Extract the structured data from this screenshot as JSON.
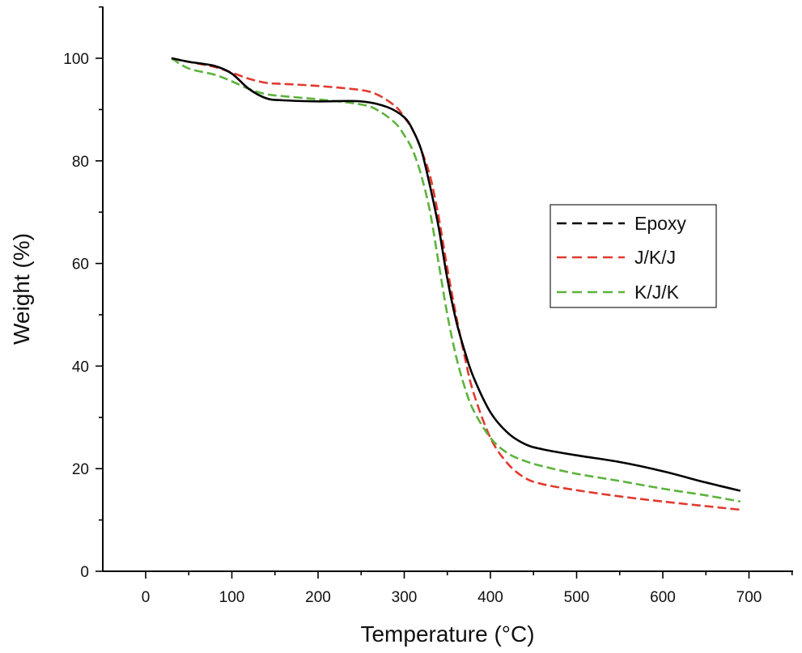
{
  "chart_data": {
    "type": "line",
    "title": "",
    "xlabel": "Temperature (°C)",
    "ylabel": "Weight (%)",
    "xlim": [
      -50,
      750
    ],
    "ylim": [
      0,
      110
    ],
    "xticks": [
      0,
      100,
      200,
      300,
      400,
      500,
      600,
      700
    ],
    "yticks": [
      0,
      20,
      40,
      60,
      80,
      100
    ],
    "xtick_labels": [
      "0",
      "100",
      "200",
      "300",
      "400",
      "500",
      "600",
      "700"
    ],
    "ytick_labels": [
      "0",
      "20",
      "40",
      "60",
      "80",
      "100"
    ],
    "grid": false,
    "legend_position": "right",
    "series": [
      {
        "name": "Epoxy",
        "color": "#000000",
        "style": "solid",
        "x": [
          30,
          50,
          80,
          100,
          120,
          140,
          160,
          200,
          250,
          280,
          300,
          310,
          320,
          330,
          340,
          350,
          360,
          370,
          380,
          400,
          420,
          440,
          460,
          500,
          550,
          600,
          650,
          690
        ],
        "y": [
          100,
          99.3,
          98.5,
          97,
          94,
          92.2,
          91.8,
          91.6,
          91.6,
          90.5,
          88.5,
          86,
          82,
          75,
          67,
          57,
          49,
          43,
          38,
          31,
          27,
          24.8,
          23.8,
          22.6,
          21.3,
          19.5,
          17.3,
          15.7
        ]
      },
      {
        "name": "J/K/J",
        "color": "#e03a2f",
        "style": "dashed",
        "x": [
          30,
          50,
          80,
          100,
          120,
          140,
          160,
          200,
          250,
          270,
          290,
          300,
          310,
          320,
          330,
          340,
          350,
          360,
          370,
          380,
          400,
          420,
          440,
          460,
          500,
          550,
          600,
          650,
          690
        ],
        "y": [
          100,
          99.3,
          98.3,
          97.2,
          96,
          95.2,
          95,
          94.6,
          93.8,
          92.8,
          90.6,
          88.5,
          86,
          82,
          77,
          69,
          59,
          50,
          42,
          35,
          26,
          21,
          18.2,
          17,
          15.8,
          14.6,
          13.6,
          12.7,
          12
        ]
      },
      {
        "name": "K/J/K",
        "color": "#5cb33c",
        "style": "dashed",
        "x": [
          30,
          50,
          80,
          100,
          120,
          140,
          160,
          200,
          250,
          270,
          290,
          300,
          310,
          320,
          330,
          340,
          350,
          360,
          370,
          380,
          400,
          420,
          440,
          460,
          500,
          550,
          600,
          650,
          690
        ],
        "y": [
          100,
          98,
          96.8,
          95.5,
          94,
          93,
          92.6,
          92,
          91,
          89.8,
          87.3,
          85,
          82,
          77,
          70,
          60,
          50,
          42,
          36,
          31.5,
          26,
          23,
          21.5,
          20.5,
          19,
          17.6,
          16.1,
          14.8,
          13.6
        ]
      }
    ]
  }
}
